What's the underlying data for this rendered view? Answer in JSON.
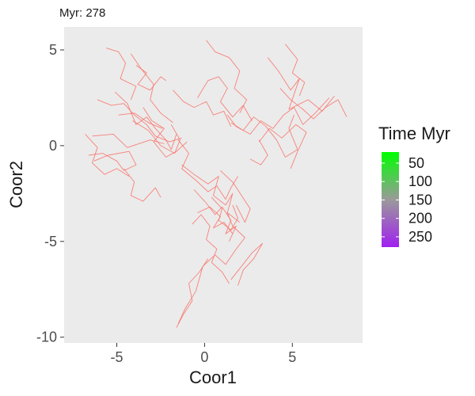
{
  "chart_data": {
    "type": "line",
    "subtitle": "Myr: 278",
    "xlabel": "Coor1",
    "ylabel": "Coor2",
    "xlim": [
      -8.0,
      9.0
    ],
    "ylim": [
      -10.3,
      6.2
    ],
    "xticks": [
      -5,
      0,
      5
    ],
    "yticks": [
      5,
      0,
      -5,
      -10
    ],
    "grid": false,
    "background": "#EBEBEB",
    "line_color": "#F8766D",
    "legend": {
      "title": "Time Myr",
      "position": "right",
      "labels": [
        "50",
        "100",
        "150",
        "200",
        "250"
      ],
      "values": [
        50,
        100,
        150,
        200,
        250
      ],
      "range": [
        20,
        278
      ],
      "color_low": "#00FF00",
      "color_high": "#A020F0"
    },
    "series": [
      {
        "x": [
          -6.4,
          -5.2,
          -4.4,
          -3.1,
          -2.3
        ],
        "y": [
          0.5,
          0.6,
          -0.1,
          0.3,
          0.1
        ]
      },
      {
        "x": [
          -6.6,
          -5.8,
          -5.0,
          -4.6,
          -3.9,
          -4.3,
          -5.5,
          -6.3
        ],
        "y": [
          -0.5,
          -0.4,
          -0.8,
          -1.3,
          -1.0,
          -0.3,
          -0.5,
          -0.8
        ]
      },
      {
        "x": [
          -6.8,
          -6.1,
          -6.4,
          -5.7,
          -5.0,
          -4.3
        ],
        "y": [
          0.6,
          -0.1,
          -0.9,
          -1.5,
          -1.2,
          -1.6
        ]
      },
      {
        "x": [
          -5.1,
          -4.4,
          -3.9,
          -3.3,
          -2.8,
          -2.2,
          -1.9,
          -1.6
        ],
        "y": [
          2.8,
          2.2,
          1.1,
          1.5,
          0.9,
          0.3,
          -0.2,
          0.6
        ]
      },
      {
        "x": [
          -4.2,
          -3.6,
          -2.9,
          -3.1,
          -2.5,
          -1.8
        ],
        "y": [
          4.8,
          4.0,
          3.2,
          2.4,
          1.7,
          1.2
        ]
      },
      {
        "x": [
          -5.6,
          -4.9,
          -4.5,
          -4.8,
          -3.9,
          -4.2
        ],
        "y": [
          5.1,
          4.9,
          4.3,
          3.5,
          3.1,
          2.4
        ]
      },
      {
        "x": [
          -6.1,
          -5.3,
          -4.6,
          -4.0,
          -3.3,
          -2.8,
          -2.0,
          -1.3
        ],
        "y": [
          2.4,
          2.1,
          2.2,
          1.6,
          1.1,
          0.5,
          0.2,
          0.4
        ]
      },
      {
        "x": [
          -4.1,
          -3.2,
          -2.5,
          -1.7,
          -1.4,
          -1.9
        ],
        "y": [
          1.3,
          0.8,
          0.0,
          -0.4,
          0.3,
          1.1
        ]
      },
      {
        "x": [
          -4.6,
          -4.0,
          -4.2,
          -3.5,
          -2.8,
          -2.5
        ],
        "y": [
          -1.2,
          -1.9,
          -2.6,
          -2.9,
          -2.2,
          -2.7
        ]
      },
      {
        "x": [
          -3.5,
          -3.0,
          -2.3,
          -2.9,
          -2.2,
          -1.6,
          -1.0
        ],
        "y": [
          2.0,
          1.3,
          0.9,
          0.2,
          -0.6,
          -0.3,
          0.2
        ]
      },
      {
        "x": [
          -3.9,
          -3.3,
          -3.8,
          -3.1,
          -2.5,
          -2.2
        ],
        "y": [
          4.2,
          3.8,
          3.2,
          2.9,
          3.6,
          3.4
        ]
      },
      {
        "x": [
          -4.9,
          -4.0,
          -3.2,
          -2.4
        ],
        "y": [
          1.6,
          1.7,
          1.2,
          0.9
        ]
      },
      {
        "x": [
          -1.8,
          -1.2,
          -0.6,
          0.1,
          0.5,
          1.1,
          1.5
        ],
        "y": [
          2.9,
          2.3,
          2.0,
          2.3,
          1.6,
          1.8,
          1.0
        ]
      },
      {
        "x": [
          -0.4,
          0.2,
          0.8,
          1.3,
          0.9,
          1.6,
          2.2,
          2.7
        ],
        "y": [
          2.5,
          3.4,
          3.6,
          3.0,
          2.3,
          1.5,
          2.1,
          1.3
        ]
      },
      {
        "x": [
          0.1,
          0.6,
          1.4,
          2.0,
          1.7,
          2.4,
          2.0
        ],
        "y": [
          5.5,
          4.9,
          4.6,
          3.9,
          3.0,
          2.4,
          1.7
        ]
      },
      {
        "x": [
          1.3,
          1.8,
          2.6,
          3.2,
          3.9,
          4.5,
          5.1,
          5.6,
          6.3,
          7.1
        ],
        "y": [
          1.6,
          1.0,
          0.6,
          1.3,
          0.9,
          1.6,
          2.0,
          1.1,
          1.7,
          2.5
        ]
      },
      {
        "x": [
          3.6,
          4.2,
          4.9,
          5.4,
          4.8,
          5.9,
          6.7,
          7.4
        ],
        "y": [
          4.6,
          3.9,
          2.9,
          3.5,
          1.9,
          2.4,
          1.8,
          2.6
        ]
      },
      {
        "x": [
          4.3,
          4.9,
          5.6,
          6.2,
          6.9,
          7.6,
          8.1
        ],
        "y": [
          3.0,
          2.4,
          1.9,
          1.4,
          2.0,
          2.4,
          1.5
        ]
      },
      {
        "x": [
          3.1,
          3.7,
          4.4,
          5.2,
          5.8,
          5.3,
          4.9
        ],
        "y": [
          0.2,
          0.9,
          0.4,
          1.1,
          0.7,
          -0.3,
          -1.2
        ]
      },
      {
        "x": [
          1.5,
          2.2,
          2.8,
          3.5,
          4.1,
          4.6,
          5.3,
          4.8,
          5.1
        ],
        "y": [
          1.2,
          0.8,
          1.5,
          1.0,
          0.3,
          -0.6,
          -0.2,
          0.9,
          1.6
        ]
      },
      {
        "x": [
          4.6,
          5.3,
          5.0,
          5.7,
          5.4
        ],
        "y": [
          5.3,
          4.5,
          3.8,
          3.3,
          2.6
        ]
      },
      {
        "x": [
          3.1,
          3.6,
          3.2,
          2.6
        ],
        "y": [
          0.3,
          -0.5,
          -1.0,
          -0.7
        ]
      },
      {
        "x": [
          -1.5,
          -0.9,
          -1.3,
          -0.5,
          0.2,
          0.7,
          1.2,
          1.5,
          1.9
        ],
        "y": [
          0.3,
          -0.4,
          -1.2,
          -1.8,
          -2.4,
          -2.1,
          -2.8,
          -2.2,
          -1.6
        ]
      },
      {
        "x": [
          -1.3,
          -0.6,
          0.2,
          0.8,
          0.5,
          1.2,
          1.6,
          1.3,
          2.0
        ],
        "y": [
          -1.0,
          -1.5,
          -2.0,
          -1.6,
          -2.6,
          -3.1,
          -2.5,
          -3.5,
          -4.0
        ]
      },
      {
        "x": [
          -0.6,
          0.1,
          0.6,
          1.0,
          1.5,
          1.2,
          1.8,
          1.4
        ],
        "y": [
          -2.3,
          -3.0,
          -3.6,
          -3.2,
          -3.9,
          -4.6,
          -4.2,
          -5.0
        ]
      },
      {
        "x": [
          -0.4,
          0.3,
          0.9,
          0.5,
          1.1,
          1.6
        ],
        "y": [
          -3.5,
          -3.2,
          -3.7,
          -4.3,
          -4.0,
          -4.6
        ]
      },
      {
        "x": [
          0.4,
          1.0,
          0.8,
          1.5,
          1.9,
          1.6
        ],
        "y": [
          -2.7,
          -3.3,
          -3.9,
          -4.4,
          -3.8,
          -3.1
        ]
      },
      {
        "x": [
          -0.7,
          -0.2,
          0.3,
          0.1,
          0.7,
          0.4,
          1.0,
          1.4
        ],
        "y": [
          -4.1,
          -3.6,
          -4.2,
          -4.9,
          -5.4,
          -6.1,
          -6.6,
          -7.2
        ]
      },
      {
        "x": [
          -1.6,
          -1.2,
          -0.7,
          -0.9,
          -0.3,
          0.2
        ],
        "y": [
          -9.5,
          -8.8,
          -8.1,
          -7.2,
          -6.6,
          -5.9
        ]
      },
      {
        "x": [
          -1.5,
          -1.1,
          -0.5,
          -0.1,
          0.6,
          1.2,
          1.8,
          2.3,
          1.6,
          1.3
        ],
        "y": [
          -9.3,
          -8.5,
          -7.6,
          -6.3,
          -5.7,
          -6.2,
          -5.4,
          -4.8,
          -4.2,
          -3.5
        ]
      },
      {
        "x": [
          1.5,
          2.1,
          2.7,
          3.3,
          2.8,
          2.2,
          1.9
        ],
        "y": [
          -7.0,
          -6.3,
          -5.6,
          -5.1,
          -5.9,
          -6.5,
          -7.3
        ]
      },
      {
        "x": [
          0.9,
          1.6,
          2.1,
          2.6,
          2.3,
          1.8
        ],
        "y": [
          -1.3,
          -1.9,
          -2.6,
          -3.3,
          -4.0,
          -3.1
        ]
      }
    ]
  }
}
